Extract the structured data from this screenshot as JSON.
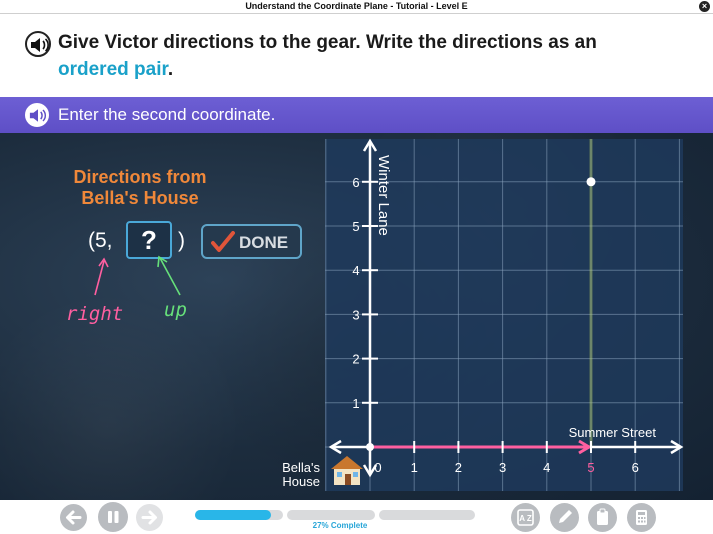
{
  "window": {
    "title": "Understand the Coordinate Plane - Tutorial - Level E",
    "close_icon": "close-icon"
  },
  "instruction": {
    "line1": "Give Victor directions to the gear. Write the directions as an",
    "line2_highlight": "ordered pair",
    "line2_end": "."
  },
  "prompt": {
    "text": "Enter the second coordinate."
  },
  "directions": {
    "title_line1": "Directions from",
    "title_line2": "Bella's House",
    "pair_prefix": "(5,",
    "pair_input": "?",
    "pair_suffix": ")",
    "done_label": "DONE",
    "annot_right": "right",
    "annot_up": "up"
  },
  "graph": {
    "x_axis_name": "Summer Street",
    "y_axis_name": "Winter Lane",
    "x_ticks": [
      "0",
      "1",
      "2",
      "3",
      "4",
      "5",
      "6"
    ],
    "y_ticks": [
      "1",
      "2",
      "3",
      "4",
      "5",
      "6"
    ],
    "origin_label_line1": "Bella's",
    "origin_label_line2": "House",
    "highlight_x_tick": "5",
    "point": {
      "x": 5,
      "y": 6
    },
    "path_to_x": 5,
    "colors": {
      "path": "#ff5fa0",
      "highlight_line": "#c9e25a",
      "point": "#ffffff"
    }
  },
  "footer": {
    "progress_fraction": 0.27,
    "progress_text": "27% Complete",
    "buttons": [
      "back-icon",
      "pause-icon",
      "forward-icon"
    ],
    "tools": [
      "glossary-icon",
      "pencil-icon",
      "clipboard-icon",
      "calculator-icon"
    ],
    "glossary_text": "A Z"
  }
}
